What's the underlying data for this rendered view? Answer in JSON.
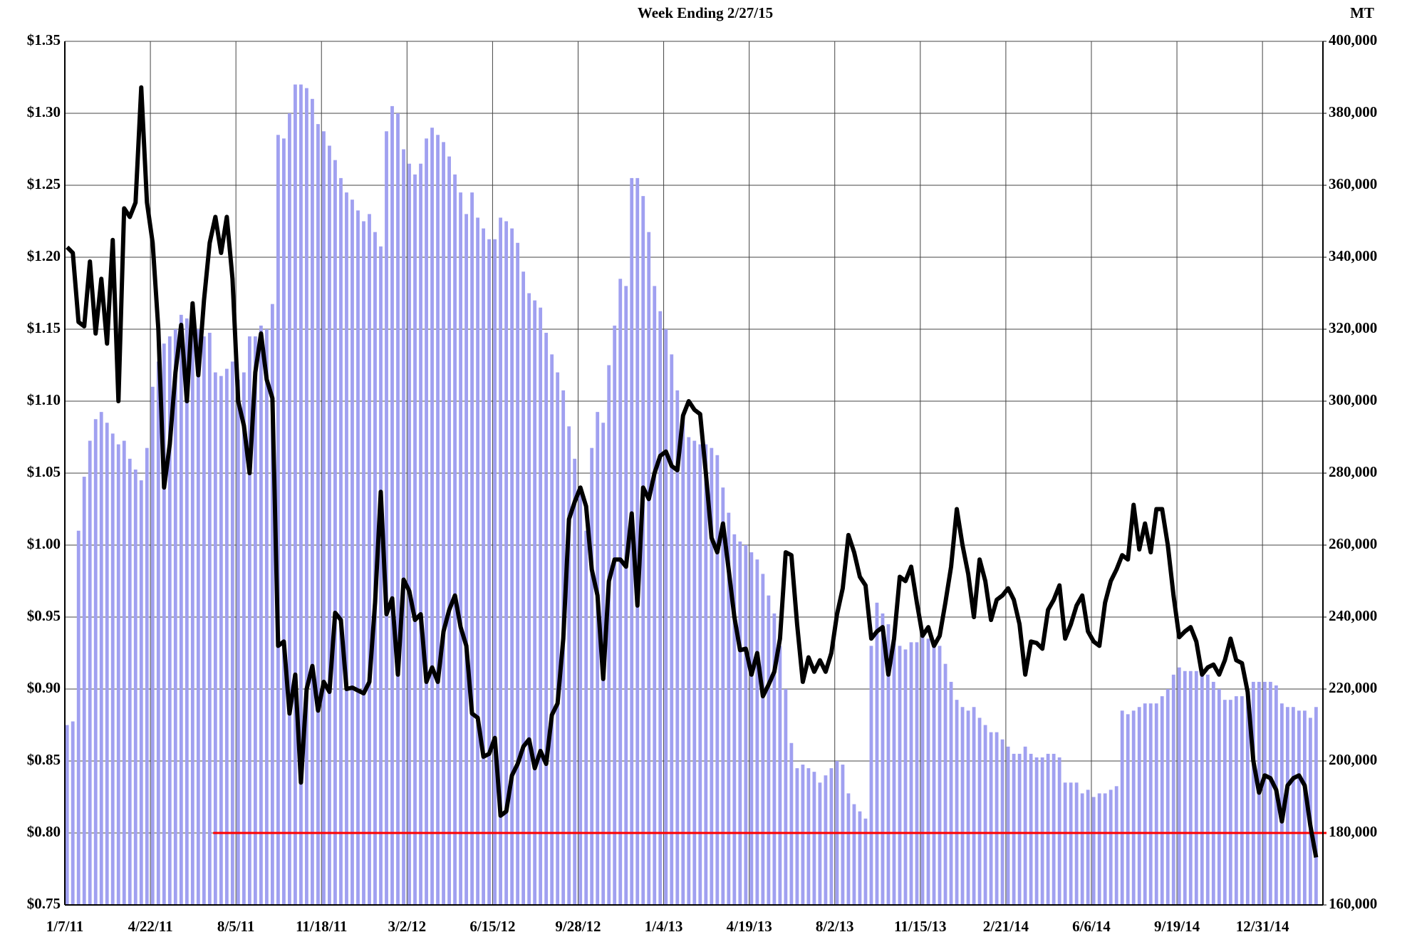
{
  "chart_data": {
    "type": "combo",
    "title": "Week Ending 2/27/15",
    "y2_label": "MT",
    "categories": [
      "1/7/11",
      null,
      null,
      null,
      null,
      null,
      null,
      null,
      null,
      null,
      null,
      null,
      null,
      null,
      null,
      "4/22/11",
      null,
      null,
      null,
      null,
      null,
      null,
      null,
      null,
      null,
      null,
      null,
      null,
      null,
      null,
      "8/5/11",
      null,
      null,
      null,
      null,
      null,
      null,
      null,
      null,
      null,
      null,
      null,
      null,
      null,
      null,
      "11/18/11",
      null,
      null,
      null,
      null,
      null,
      null,
      null,
      null,
      null,
      null,
      null,
      null,
      null,
      null,
      "3/2/12",
      null,
      null,
      null,
      null,
      null,
      null,
      null,
      null,
      null,
      null,
      null,
      null,
      null,
      null,
      "6/15/12",
      null,
      null,
      null,
      null,
      null,
      null,
      null,
      null,
      null,
      null,
      null,
      null,
      null,
      null,
      "9/28/12",
      null,
      null,
      null,
      null,
      null,
      null,
      null,
      null,
      null,
      null,
      null,
      null,
      null,
      null,
      "1/4/13",
      null,
      null,
      null,
      null,
      null,
      null,
      null,
      null,
      null,
      null,
      null,
      null,
      null,
      null,
      "4/19/13",
      null,
      null,
      null,
      null,
      null,
      null,
      null,
      null,
      null,
      null,
      null,
      null,
      null,
      null,
      "8/2/13",
      null,
      null,
      null,
      null,
      null,
      null,
      null,
      null,
      null,
      null,
      null,
      null,
      null,
      null,
      "11/15/13",
      null,
      null,
      null,
      null,
      null,
      null,
      null,
      null,
      null,
      null,
      null,
      null,
      null,
      null,
      "2/21/14",
      null,
      null,
      null,
      null,
      null,
      null,
      null,
      null,
      null,
      null,
      null,
      null,
      null,
      null,
      "6/6/14",
      null,
      null,
      null,
      null,
      null,
      null,
      null,
      null,
      null,
      null,
      null,
      null,
      null,
      null,
      "9/19/14",
      null,
      null,
      null,
      null,
      null,
      null,
      null,
      null,
      null,
      null,
      null,
      null,
      null,
      null,
      "12/31/14",
      null,
      null,
      null,
      null,
      null,
      null,
      null,
      null,
      null
    ],
    "ylim": [
      0.75,
      1.35
    ],
    "yticks": [
      {
        "value": 0.75,
        "label": "$0.75"
      },
      {
        "value": 0.8,
        "label": "$0.80"
      },
      {
        "value": 0.85,
        "label": "$0.85"
      },
      {
        "value": 0.9,
        "label": "$0.90"
      },
      {
        "value": 0.95,
        "label": "$0.95"
      },
      {
        "value": 1.0,
        "label": "$1.00"
      },
      {
        "value": 1.05,
        "label": "$1.05"
      },
      {
        "value": 1.1,
        "label": "$1.10"
      },
      {
        "value": 1.15,
        "label": "$1.15"
      },
      {
        "value": 1.2,
        "label": "$1.20"
      },
      {
        "value": 1.25,
        "label": "$1.25"
      },
      {
        "value": 1.3,
        "label": "$1.30"
      },
      {
        "value": 1.35,
        "label": "$1.35"
      }
    ],
    "y2lim": [
      160000,
      400000
    ],
    "y2ticks": [
      {
        "value": 160000,
        "label": "160,000"
      },
      {
        "value": 180000,
        "label": "180,000"
      },
      {
        "value": 200000,
        "label": "200,000"
      },
      {
        "value": 220000,
        "label": "220,000"
      },
      {
        "value": 240000,
        "label": "240,000"
      },
      {
        "value": 260000,
        "label": "260,000"
      },
      {
        "value": 280000,
        "label": "280,000"
      },
      {
        "value": 300000,
        "label": "300,000"
      },
      {
        "value": 320000,
        "label": "320,000"
      },
      {
        "value": 340000,
        "label": "340,000"
      },
      {
        "value": 360000,
        "label": "360,000"
      },
      {
        "value": 380000,
        "label": "380,000"
      },
      {
        "value": 400000,
        "label": "400,000"
      }
    ],
    "grid": true,
    "series": [
      {
        "type": "bar",
        "axis": "y2",
        "color": "#a0a0f0",
        "values": [
          210000,
          211000,
          264000,
          279000,
          289000,
          295000,
          297000,
          294000,
          291000,
          288000,
          289000,
          284000,
          281000,
          278000,
          287000,
          304000,
          311000,
          316000,
          318000,
          320000,
          324000,
          323000,
          322000,
          320000,
          318000,
          319000,
          308000,
          307000,
          309000,
          311000,
          306000,
          308000,
          318000,
          318000,
          321000,
          320000,
          327000,
          374000,
          373000,
          380000,
          388000,
          388000,
          387000,
          384000,
          377000,
          375000,
          371000,
          367000,
          362000,
          358000,
          356000,
          353000,
          350000,
          352000,
          347000,
          343000,
          375000,
          382000,
          380000,
          370000,
          366000,
          363000,
          366000,
          373000,
          376000,
          374000,
          372000,
          368000,
          363000,
          358000,
          352000,
          358000,
          351000,
          348000,
          345000,
          345000,
          351000,
          350000,
          348000,
          344000,
          336000,
          330000,
          328000,
          326000,
          319000,
          313000,
          308000,
          303000,
          293000,
          284000,
          276000,
          264000,
          287000,
          297000,
          294000,
          310000,
          321000,
          334000,
          332000,
          362000,
          362000,
          357000,
          347000,
          332000,
          325000,
          320000,
          313000,
          303000,
          295000,
          290000,
          289000,
          288000,
          288000,
          287000,
          285000,
          276000,
          269000,
          263000,
          261000,
          260000,
          258000,
          256000,
          252000,
          246000,
          241000,
          232000,
          220000,
          205000,
          198000,
          199000,
          198000,
          197000,
          194000,
          196000,
          198000,
          200000,
          199000,
          191000,
          188000,
          186000,
          184000,
          232000,
          244000,
          241000,
          238000,
          234000,
          232000,
          231000,
          233000,
          233000,
          236000,
          234000,
          232000,
          232000,
          227000,
          222000,
          217000,
          215000,
          214000,
          215000,
          212000,
          210000,
          208000,
          208000,
          206000,
          204000,
          202000,
          202000,
          204000,
          202000,
          201000,
          201000,
          202000,
          202000,
          201000,
          194000,
          194000,
          194000,
          191000,
          192000,
          190000,
          191000,
          191000,
          192000,
          193000,
          214000,
          213000,
          214000,
          215000,
          216000,
          216000,
          216000,
          218000,
          220000,
          224000,
          226000,
          225000,
          225000,
          225000,
          224000,
          224000,
          222000,
          220000,
          217000,
          217000,
          218000,
          218000,
          220000,
          222000,
          222000,
          222000,
          222000,
          221000,
          216000,
          215000,
          215000,
          214000,
          214000,
          212000,
          215000
        ]
      },
      {
        "type": "line",
        "color": "#000000",
        "values": [
          1.207,
          1.203,
          1.155,
          1.152,
          1.197,
          1.147,
          1.185,
          1.14,
          1.212,
          1.1,
          1.234,
          1.228,
          1.238,
          1.318,
          1.238,
          1.21,
          1.15,
          1.04,
          1.07,
          1.12,
          1.153,
          1.1,
          1.168,
          1.118,
          1.17,
          1.21,
          1.228,
          1.203,
          1.228,
          1.185,
          1.1,
          1.083,
          1.05,
          1.12,
          1.147,
          1.115,
          1.102,
          0.93,
          0.933,
          0.883,
          0.91,
          0.835,
          0.9,
          0.916,
          0.885,
          0.905,
          0.898,
          0.953,
          0.948,
          0.9,
          0.901,
          0.899,
          0.897,
          0.905,
          0.96,
          1.037,
          0.952,
          0.963,
          0.91,
          0.976,
          0.968,
          0.948,
          0.952,
          0.905,
          0.915,
          0.905,
          0.94,
          0.955,
          0.965,
          0.943,
          0.93,
          0.883,
          0.88,
          0.853,
          0.855,
          0.866,
          0.812,
          0.815,
          0.84,
          0.848,
          0.86,
          0.865,
          0.845,
          0.857,
          0.848,
          0.882,
          0.89,
          0.935,
          1.018,
          1.03,
          1.04,
          1.027,
          0.983,
          0.965,
          0.907,
          0.975,
          0.99,
          0.99,
          0.985,
          1.022,
          0.958,
          1.04,
          1.032,
          1.05,
          1.062,
          1.065,
          1.055,
          1.052,
          1.09,
          1.1,
          1.094,
          1.091,
          1.05,
          1.005,
          0.995,
          1.015,
          0.983,
          0.95,
          0.927,
          0.928,
          0.91,
          0.925,
          0.895,
          0.903,
          0.912,
          0.935,
          0.995,
          0.993,
          0.945,
          0.905,
          0.922,
          0.912,
          0.92,
          0.912,
          0.925,
          0.952,
          0.97,
          1.007,
          0.995,
          0.978,
          0.972,
          0.935,
          0.94,
          0.943,
          0.91,
          0.935,
          0.978,
          0.975,
          0.985,
          0.96,
          0.937,
          0.943,
          0.93,
          0.937,
          0.96,
          0.985,
          1.025,
          1.0,
          0.98,
          0.95,
          0.99,
          0.975,
          0.948,
          0.962,
          0.965,
          0.97,
          0.962,
          0.945,
          0.91,
          0.933,
          0.932,
          0.928,
          0.955,
          0.962,
          0.972,
          0.935,
          0.945,
          0.958,
          0.965,
          0.94,
          0.933,
          0.93,
          0.96,
          0.975,
          0.983,
          0.993,
          0.99,
          1.028,
          0.997,
          1.015,
          0.995,
          1.025,
          1.025,
          1.0,
          0.965,
          0.936,
          0.94,
          0.943,
          0.933,
          0.91,
          0.915,
          0.917,
          0.91,
          0.92,
          0.935,
          0.92,
          0.918,
          0.898,
          0.85,
          0.828,
          0.84,
          0.838,
          0.83,
          0.808,
          0.833,
          0.838,
          0.84,
          0.833,
          0.805,
          0.783
        ]
      }
    ],
    "reference_line": {
      "value": 0.8,
      "color": "#ff0000",
      "start": 26
    }
  }
}
